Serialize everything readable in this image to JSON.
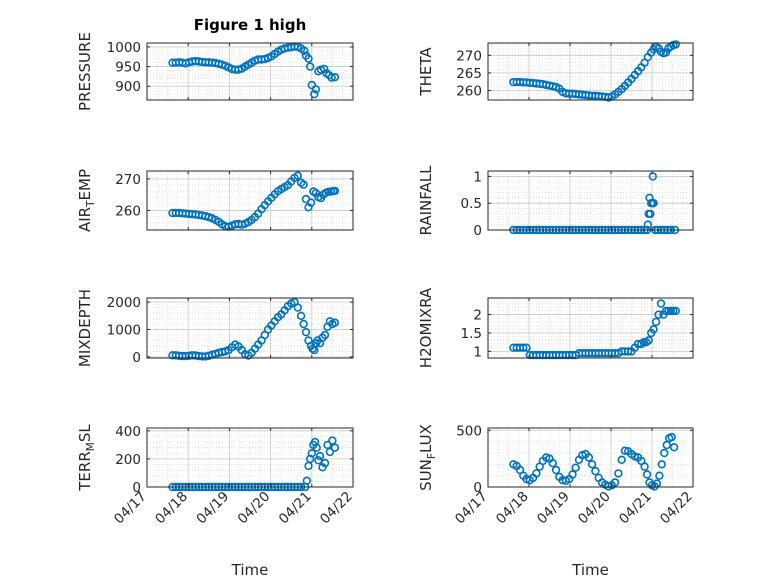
{
  "title": "Figure 1 high",
  "marker_color": "#0072BD",
  "axis_color": "#262626",
  "grid_color": "#d9d9d9",
  "chart_data": [
    {
      "type": "scatter",
      "title": "Figure 1 high",
      "ylabel": "PRESSURE",
      "ylabel_parts": [
        {
          "t": "PRESSURE",
          "s": null
        }
      ],
      "ylim": [
        865,
        1010
      ],
      "yticks": [
        900,
        950,
        1000
      ],
      "xlabel": "",
      "show_xticklabels": false,
      "x": [
        17.62,
        17.7,
        17.78,
        17.86,
        17.94,
        18.02,
        18.1,
        18.18,
        18.26,
        18.34,
        18.42,
        18.5,
        18.58,
        18.66,
        18.74,
        18.82,
        18.9,
        18.98,
        19.06,
        19.14,
        19.22,
        19.3,
        19.38,
        19.46,
        19.54,
        19.62,
        19.7,
        19.78,
        19.86,
        19.94,
        20.02,
        20.1,
        20.18,
        20.26,
        20.34,
        20.42,
        20.5,
        20.58,
        20.66,
        20.74,
        20.82,
        20.86,
        20.92,
        20.96,
        21.0,
        21.06,
        21.1,
        21.16,
        21.22,
        21.3,
        21.36,
        21.42,
        21.48,
        21.56
      ],
      "y": [
        960,
        960,
        961,
        960,
        958,
        961,
        963,
        964,
        963,
        962,
        961,
        961,
        960,
        959,
        957,
        955,
        952,
        948,
        944,
        942,
        942,
        945,
        950,
        955,
        960,
        965,
        968,
        968,
        969,
        972,
        976,
        982,
        988,
        993,
        996,
        998,
        999,
        1001,
        1000,
        996,
        990,
        978,
        970,
        950,
        903,
        880,
        892,
        938,
        942,
        944,
        933,
        928,
        922,
        923
      ]
    },
    {
      "type": "scatter",
      "title": "",
      "ylabel": "THETA",
      "ylabel_parts": [
        {
          "t": "THETA",
          "s": null
        }
      ],
      "ylim": [
        257.3,
        273.5
      ],
      "yticks": [
        260,
        265,
        270
      ],
      "xlabel": "",
      "show_xticklabels": false,
      "x": [
        17.62,
        17.7,
        17.78,
        17.86,
        17.94,
        18.02,
        18.1,
        18.18,
        18.26,
        18.34,
        18.42,
        18.5,
        18.58,
        18.66,
        18.74,
        18.82,
        18.9,
        18.98,
        19.06,
        19.14,
        19.22,
        19.3,
        19.38,
        19.46,
        19.54,
        19.62,
        19.7,
        19.78,
        19.86,
        19.94,
        20.02,
        20.1,
        20.18,
        20.26,
        20.34,
        20.42,
        20.5,
        20.58,
        20.66,
        20.74,
        20.82,
        20.9,
        20.98,
        21.04,
        21.1,
        21.16,
        21.22,
        21.28,
        21.34,
        21.4,
        21.46,
        21.52,
        21.58
      ],
      "y": [
        262.4,
        262.4,
        262.4,
        262.3,
        262.3,
        262.2,
        262.1,
        262.0,
        261.9,
        261.8,
        261.6,
        261.4,
        261.2,
        261.0,
        260.5,
        259.6,
        259.2,
        259.1,
        259.1,
        259.0,
        258.9,
        258.8,
        258.7,
        258.6,
        258.5,
        258.5,
        258.4,
        258.3,
        258.2,
        258.0,
        258.3,
        258.9,
        259.6,
        260.4,
        261.3,
        262.3,
        263.3,
        264.4,
        265.5,
        266.6,
        267.9,
        269.5,
        270.8,
        271.7,
        272.4,
        272.0,
        271.0,
        270.6,
        270.8,
        272.0,
        272.5,
        272.9,
        273.1
      ]
    },
    {
      "type": "scatter",
      "title": "",
      "ylabel": "AIR_TEMP",
      "ylabel_parts": [
        {
          "t": "AIR",
          "s": null
        },
        {
          "t": "T",
          "s": "sub"
        },
        {
          "t": "EMP",
          "s": null
        }
      ],
      "ylim": [
        253.8,
        272.5
      ],
      "yticks": [
        260,
        270
      ],
      "xlabel": "",
      "show_xticklabels": false,
      "x": [
        17.62,
        17.7,
        17.78,
        17.86,
        17.94,
        18.02,
        18.1,
        18.18,
        18.26,
        18.34,
        18.42,
        18.5,
        18.58,
        18.66,
        18.74,
        18.82,
        18.9,
        18.98,
        19.06,
        19.14,
        19.22,
        19.3,
        19.38,
        19.46,
        19.54,
        19.62,
        19.7,
        19.78,
        19.86,
        19.94,
        20.02,
        20.1,
        20.18,
        20.26,
        20.34,
        20.42,
        20.5,
        20.58,
        20.66,
        20.74,
        20.8,
        20.86,
        20.92,
        20.98,
        21.04,
        21.1,
        21.16,
        21.22,
        21.28,
        21.34,
        21.4,
        21.46,
        21.52,
        21.56
      ],
      "y": [
        259.2,
        259.2,
        259.2,
        259.1,
        259.0,
        258.9,
        258.8,
        258.7,
        258.6,
        258.4,
        258.2,
        257.9,
        257.5,
        257.0,
        256.4,
        255.6,
        255.0,
        254.8,
        255.2,
        255.6,
        255.7,
        255.5,
        255.8,
        256.3,
        257.0,
        257.9,
        259.0,
        260.4,
        261.7,
        262.9,
        264.0,
        265.1,
        266.1,
        266.8,
        267.4,
        268.0,
        269.2,
        270.3,
        271.0,
        268.8,
        268.2,
        263.6,
        261.0,
        262.5,
        266.0,
        265.5,
        264.2,
        263.9,
        265.0,
        265.6,
        265.9,
        266.0,
        266.1,
        266.2
      ]
    },
    {
      "type": "scatter",
      "title": "",
      "ylabel": "RAINFALL",
      "ylabel_parts": [
        {
          "t": "RAINFALL",
          "s": null
        }
      ],
      "ylim": [
        0,
        1.1
      ],
      "yticks": [
        0,
        0.5,
        1
      ],
      "xlabel": "",
      "show_xticklabels": false,
      "x": [
        17.62,
        17.7,
        17.78,
        17.86,
        17.94,
        18.02,
        18.1,
        18.18,
        18.26,
        18.34,
        18.42,
        18.5,
        18.58,
        18.66,
        18.74,
        18.82,
        18.9,
        18.98,
        19.06,
        19.14,
        19.22,
        19.3,
        19.38,
        19.46,
        19.54,
        19.62,
        19.7,
        19.78,
        19.86,
        19.94,
        20.02,
        20.1,
        20.18,
        20.26,
        20.34,
        20.42,
        20.5,
        20.58,
        20.66,
        20.74,
        20.82,
        20.88,
        20.9,
        20.92,
        20.94,
        20.96,
        20.98,
        21.0,
        21.02,
        21.04,
        21.08,
        21.14,
        21.22,
        21.3,
        21.38,
        21.46,
        21.56
      ],
      "y": [
        0,
        0,
        0,
        0,
        0,
        0,
        0,
        0,
        0,
        0,
        0,
        0,
        0,
        0,
        0,
        0,
        0,
        0,
        0,
        0,
        0,
        0,
        0,
        0,
        0,
        0,
        0,
        0,
        0,
        0,
        0,
        0,
        0,
        0,
        0,
        0,
        0,
        0,
        0,
        0,
        0,
        0,
        0.1,
        0.3,
        0.6,
        0.3,
        0.5,
        0.5,
        1.0,
        0.5,
        0,
        0,
        0,
        0,
        0,
        0,
        0
      ]
    },
    {
      "type": "scatter",
      "title": "",
      "ylabel": "MIXDEPTH",
      "ylabel_parts": [
        {
          "t": "MIXDEPTH",
          "s": null
        }
      ],
      "ylim": [
        -40,
        2150
      ],
      "yticks": [
        0,
        1000,
        2000
      ],
      "xlabel": "",
      "show_xticklabels": false,
      "x": [
        17.62,
        17.7,
        17.78,
        17.86,
        17.94,
        18.02,
        18.1,
        18.18,
        18.26,
        18.34,
        18.42,
        18.5,
        18.58,
        18.66,
        18.74,
        18.82,
        18.9,
        18.98,
        19.06,
        19.14,
        19.22,
        19.3,
        19.38,
        19.46,
        19.54,
        19.62,
        19.7,
        19.78,
        19.86,
        19.94,
        20.02,
        20.1,
        20.18,
        20.26,
        20.34,
        20.42,
        20.5,
        20.58,
        20.66,
        20.74,
        20.8,
        20.86,
        20.92,
        20.98,
        21.02,
        21.06,
        21.1,
        21.14,
        21.2,
        21.26,
        21.32,
        21.38,
        21.44,
        21.5,
        21.56
      ],
      "y": [
        60,
        60,
        40,
        30,
        30,
        40,
        60,
        50,
        30,
        20,
        20,
        40,
        80,
        110,
        150,
        180,
        200,
        250,
        350,
        450,
        380,
        250,
        100,
        50,
        150,
        300,
        450,
        600,
        800,
        1000,
        1150,
        1300,
        1450,
        1550,
        1700,
        1850,
        1950,
        2000,
        1800,
        1500,
        1200,
        900,
        600,
        400,
        300,
        250,
        500,
        600,
        500,
        700,
        800,
        1100,
        1300,
        1200,
        1250
      ]
    },
    {
      "type": "scatter",
      "title": "",
      "ylabel": "H2OMIXRA",
      "ylabel_parts": [
        {
          "t": "H2OMIXRA",
          "s": null
        }
      ],
      "ylim": [
        0.82,
        2.45
      ],
      "yticks": [
        1,
        1.5,
        2
      ],
      "xlabel": "",
      "show_xticklabels": false,
      "x": [
        17.62,
        17.7,
        17.78,
        17.86,
        17.94,
        18.02,
        18.1,
        18.18,
        18.26,
        18.34,
        18.42,
        18.5,
        18.58,
        18.66,
        18.74,
        18.82,
        18.9,
        18.98,
        19.06,
        19.14,
        19.22,
        19.3,
        19.38,
        19.46,
        19.54,
        19.62,
        19.7,
        19.78,
        19.86,
        19.94,
        20.02,
        20.1,
        20.18,
        20.26,
        20.34,
        20.42,
        20.5,
        20.58,
        20.66,
        20.74,
        20.8,
        20.86,
        20.92,
        20.98,
        21.04,
        21.1,
        21.16,
        21.22,
        21.28,
        21.34,
        21.4,
        21.46,
        21.52,
        21.58
      ],
      "y": [
        1.1,
        1.1,
        1.1,
        1.1,
        1.1,
        0.9,
        0.9,
        0.9,
        0.9,
        0.9,
        0.9,
        0.9,
        0.9,
        0.9,
        0.9,
        0.9,
        0.9,
        0.9,
        0.9,
        0.9,
        0.95,
        0.95,
        0.95,
        0.95,
        0.95,
        0.95,
        0.95,
        0.95,
        0.95,
        0.95,
        0.95,
        0.95,
        0.95,
        1.0,
        1.0,
        1.0,
        1.0,
        1.1,
        1.2,
        1.2,
        1.25,
        1.25,
        1.3,
        1.5,
        1.6,
        1.8,
        2.0,
        2.3,
        2.0,
        2.1,
        2.1,
        2.1,
        2.1,
        2.1
      ]
    },
    {
      "type": "scatter",
      "title": "",
      "ylabel": "TERR_MSL",
      "ylabel_parts": [
        {
          "t": "TERR",
          "s": null
        },
        {
          "t": "M",
          "s": "sub"
        },
        {
          "t": "SL",
          "s": null
        }
      ],
      "ylim": [
        0,
        420
      ],
      "yticks": [
        0,
        200,
        400
      ],
      "xlabel": "Time",
      "show_xticklabels": true,
      "x": [
        17.62,
        17.7,
        17.78,
        17.86,
        17.94,
        18.02,
        18.1,
        18.18,
        18.26,
        18.34,
        18.42,
        18.5,
        18.58,
        18.66,
        18.74,
        18.82,
        18.9,
        18.98,
        19.06,
        19.14,
        19.22,
        19.3,
        19.38,
        19.46,
        19.54,
        19.62,
        19.7,
        19.78,
        19.86,
        19.94,
        20.02,
        20.1,
        20.18,
        20.26,
        20.34,
        20.42,
        20.5,
        20.58,
        20.66,
        20.74,
        20.84,
        20.88,
        20.92,
        20.96,
        21.0,
        21.04,
        21.08,
        21.12,
        21.16,
        21.2,
        21.26,
        21.32,
        21.38,
        21.44,
        21.5,
        21.56
      ],
      "y": [
        0,
        0,
        0,
        0,
        0,
        0,
        0,
        0,
        0,
        0,
        0,
        0,
        0,
        0,
        0,
        0,
        0,
        0,
        0,
        0,
        0,
        0,
        0,
        0,
        0,
        0,
        0,
        0,
        0,
        0,
        0,
        0,
        0,
        0,
        0,
        0,
        0,
        0,
        0,
        0,
        0,
        45,
        150,
        200,
        240,
        300,
        320,
        280,
        190,
        220,
        140,
        170,
        300,
        250,
        330,
        280
      ]
    },
    {
      "type": "scatter",
      "title": "",
      "ylabel": "SUN_FLUX",
      "ylabel_parts": [
        {
          "t": "SUN",
          "s": null
        },
        {
          "t": "F",
          "s": "sub"
        },
        {
          "t": "LUX",
          "s": null
        }
      ],
      "ylim": [
        0,
        520
      ],
      "yticks": [
        0,
        500
      ],
      "xlabel": "Time",
      "show_xticklabels": true,
      "x": [
        17.62,
        17.7,
        17.78,
        17.86,
        17.94,
        18.02,
        18.1,
        18.18,
        18.26,
        18.34,
        18.42,
        18.5,
        18.58,
        18.66,
        18.74,
        18.82,
        18.9,
        18.98,
        19.06,
        19.14,
        19.22,
        19.3,
        19.38,
        19.46,
        19.54,
        19.62,
        19.7,
        19.78,
        19.86,
        19.94,
        20.02,
        20.1,
        20.18,
        20.26,
        20.34,
        20.42,
        20.5,
        20.58,
        20.66,
        20.74,
        20.82,
        20.88,
        20.94,
        21.0,
        21.06,
        21.12,
        21.18,
        21.24,
        21.3,
        21.36,
        21.42,
        21.48,
        21.54
      ],
      "y": [
        200,
        185,
        150,
        100,
        70,
        60,
        80,
        120,
        180,
        230,
        260,
        250,
        210,
        150,
        90,
        60,
        55,
        70,
        110,
        170,
        240,
        280,
        290,
        260,
        200,
        140,
        80,
        40,
        20,
        5,
        15,
        40,
        120,
        240,
        320,
        315,
        290,
        270,
        260,
        230,
        180,
        110,
        40,
        15,
        5,
        30,
        100,
        200,
        300,
        370,
        430,
        440,
        350
      ]
    }
  ],
  "x_axis": {
    "xlim": [
      17,
      22
    ],
    "ticks": [
      17,
      18,
      19,
      20,
      21,
      22
    ],
    "tick_labels": [
      "04/17",
      "04/18",
      "04/19",
      "04/20",
      "04/21",
      "04/22"
    ],
    "label": "Time"
  }
}
